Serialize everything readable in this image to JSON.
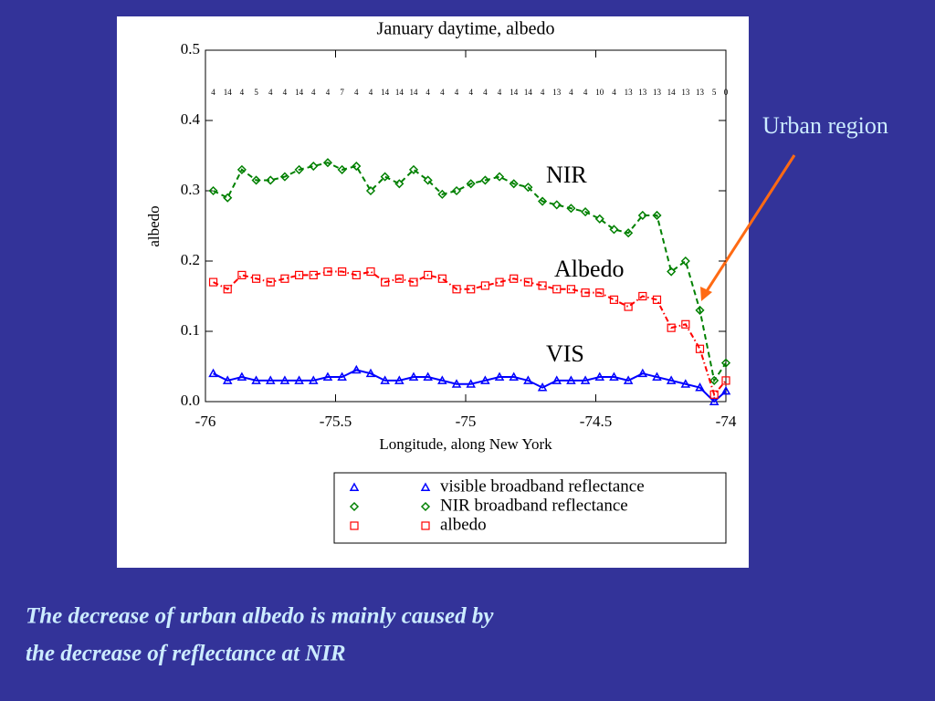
{
  "chart_data": {
    "type": "line",
    "title": "January daytime, albedo",
    "x_label": "Longitude, along New York",
    "y_label": "albedo",
    "xlim": [
      -76,
      -74
    ],
    "xticks": [
      -76,
      -75.5,
      -75,
      -74.5,
      -74
    ],
    "ylim": [
      0,
      0.5
    ],
    "yticks": [
      {
        "value": 0,
        "label": "0.0"
      },
      0.1,
      0.2,
      0.3,
      0.4,
      0.5
    ],
    "x": [
      -75.97,
      -75.915,
      -75.86,
      -75.805,
      -75.75,
      -75.695,
      -75.64,
      -75.585,
      -75.53,
      -75.475,
      -75.42,
      -75.365,
      -75.31,
      -75.255,
      -75.2,
      -75.145,
      -75.09,
      -75.035,
      -74.98,
      -74.925,
      -74.87,
      -74.815,
      -74.76,
      -74.705,
      -74.65,
      -74.595,
      -74.54,
      -74.485,
      -74.43,
      -74.375,
      -74.32,
      -74.265,
      -74.21,
      -74.155,
      -74.1,
      -74.045,
      -74.0
    ],
    "counts": [
      4,
      14,
      4,
      5,
      4,
      4,
      14,
      4,
      4,
      7,
      4,
      4,
      14,
      14,
      14,
      4,
      4,
      4,
      4,
      4,
      4,
      14,
      14,
      4,
      13,
      4,
      4,
      10,
      4,
      13,
      13,
      13,
      14,
      13,
      13,
      5,
      0
    ],
    "series": [
      {
        "name": "visible broadband reflectance",
        "color": "#0000ff",
        "marker": "triangle",
        "dash": "solid",
        "values": [
          0.04,
          0.03,
          0.035,
          0.03,
          0.03,
          0.03,
          0.03,
          0.03,
          0.035,
          0.035,
          0.045,
          0.04,
          0.03,
          0.03,
          0.035,
          0.035,
          0.03,
          0.025,
          0.025,
          0.03,
          0.035,
          0.035,
          0.03,
          0.02,
          0.03,
          0.03,
          0.03,
          0.035,
          0.035,
          0.03,
          0.04,
          0.035,
          0.03,
          0.025,
          0.02,
          0.0,
          0.015
        ]
      },
      {
        "name": "NIR broadband reflectance",
        "color": "#008000",
        "marker": "diamond",
        "dash": "dashed",
        "values": [
          0.3,
          0.29,
          0.33,
          0.315,
          0.315,
          0.32,
          0.33,
          0.335,
          0.34,
          0.33,
          0.335,
          0.3,
          0.32,
          0.31,
          0.33,
          0.315,
          0.295,
          0.3,
          0.31,
          0.315,
          0.32,
          0.31,
          0.305,
          0.285,
          0.28,
          0.275,
          0.27,
          0.26,
          0.245,
          0.24,
          0.265,
          0.265,
          0.185,
          0.2,
          0.13,
          0.03,
          0.055
        ]
      },
      {
        "name": "albedo",
        "color": "#ff0000",
        "marker": "square",
        "dash": "dashdot",
        "values": [
          0.17,
          0.16,
          0.18,
          0.175,
          0.17,
          0.175,
          0.18,
          0.18,
          0.185,
          0.185,
          0.18,
          0.185,
          0.17,
          0.175,
          0.17,
          0.18,
          0.175,
          0.16,
          0.16,
          0.165,
          0.17,
          0.175,
          0.17,
          0.165,
          0.16,
          0.16,
          0.155,
          0.155,
          0.145,
          0.135,
          0.15,
          0.145,
          0.105,
          0.11,
          0.075,
          0.01,
          0.03
        ]
      }
    ],
    "annotations": [
      "NIR",
      "Albedo",
      "VIS",
      "Urban region"
    ],
    "caption": [
      "The decrease of urban albedo is mainly caused by",
      "the decrease of reflectance at NIR"
    ]
  }
}
